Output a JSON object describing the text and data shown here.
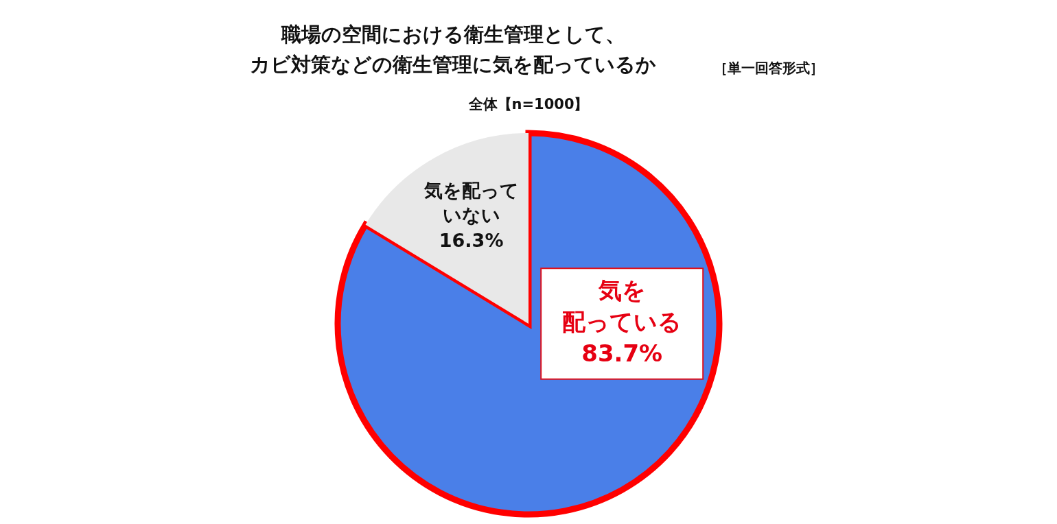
{
  "chart_data": {
    "type": "pie",
    "title": "職場の空間における衛生管理として、カビ対策などの衛生管理に気を配っているか",
    "subtitle": "全体【n=1000】",
    "annotations": [
      "［単一回答形式］"
    ],
    "categories": [
      "気を配っている",
      "気を配っていない"
    ],
    "values": [
      83.7,
      16.3
    ],
    "colors": [
      "#4a7fe8",
      "#e8e8e8"
    ],
    "value_labels": [
      "83.7%",
      "16.3%"
    ],
    "legend": false
  }
}
